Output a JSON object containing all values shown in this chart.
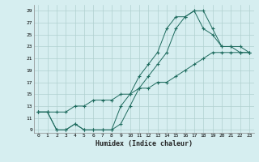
{
  "xlabel": "Humidex (Indice chaleur)",
  "bg_color": "#d6eef0",
  "grid_color": "#b0d0d0",
  "line_color": "#1e6b5e",
  "line1_x": [
    0,
    1,
    2,
    3,
    4,
    5,
    6,
    7,
    8,
    9,
    10,
    11,
    12,
    13,
    14,
    15,
    16,
    17,
    18,
    19,
    20,
    21,
    22,
    23
  ],
  "line1_y": [
    12,
    12,
    9,
    9,
    10,
    9,
    9,
    9,
    9,
    10,
    13,
    16,
    18,
    20,
    22,
    26,
    28,
    29,
    29,
    26,
    23,
    23,
    23,
    22
  ],
  "line2_x": [
    0,
    1,
    2,
    3,
    4,
    5,
    6,
    7,
    8,
    9,
    10,
    11,
    12,
    13,
    14,
    15,
    16,
    17,
    18,
    19,
    20,
    21,
    22,
    23
  ],
  "line2_y": [
    12,
    12,
    9,
    9,
    10,
    9,
    9,
    9,
    9,
    13,
    15,
    18,
    20,
    22,
    26,
    28,
    28,
    29,
    26,
    25,
    23,
    23,
    22,
    22
  ],
  "line3_x": [
    0,
    1,
    2,
    3,
    4,
    5,
    6,
    7,
    8,
    9,
    10,
    11,
    12,
    13,
    14,
    15,
    16,
    17,
    18,
    19,
    20,
    21,
    22,
    23
  ],
  "line3_y": [
    12,
    12,
    12,
    12,
    13,
    13,
    14,
    14,
    14,
    15,
    15,
    16,
    16,
    17,
    17,
    18,
    19,
    20,
    21,
    22,
    22,
    22,
    22,
    22
  ],
  "xlim": [
    -0.5,
    23.5
  ],
  "ylim": [
    8.5,
    30
  ],
  "yticks": [
    9,
    11,
    13,
    15,
    17,
    19,
    21,
    23,
    25,
    27,
    29
  ],
  "xticks": [
    0,
    1,
    2,
    3,
    4,
    5,
    6,
    7,
    8,
    9,
    10,
    11,
    12,
    13,
    14,
    15,
    16,
    17,
    18,
    19,
    20,
    21,
    22,
    23
  ]
}
